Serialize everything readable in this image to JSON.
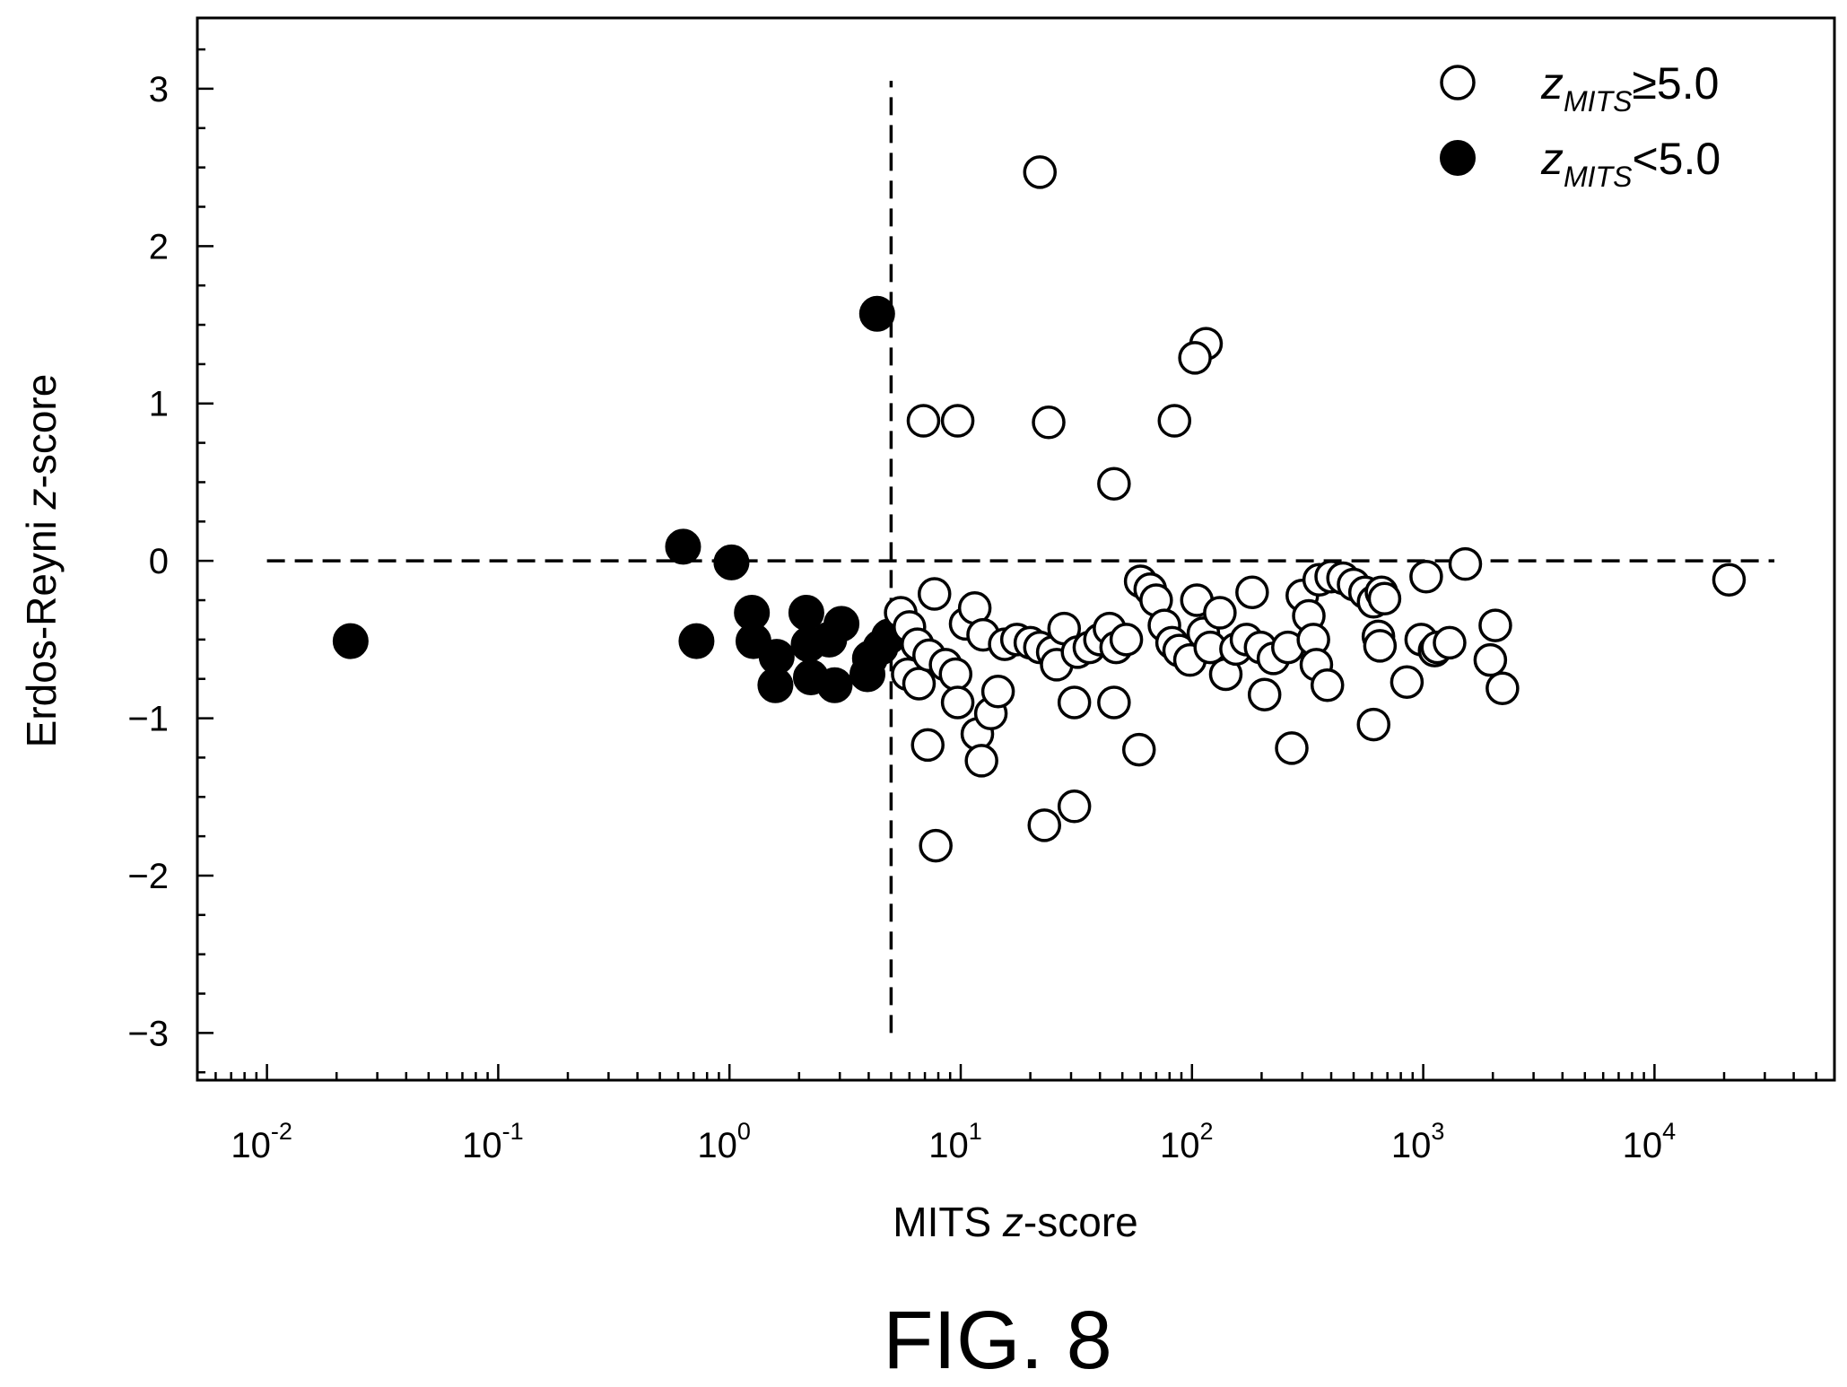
{
  "chart_data": {
    "type": "scatter",
    "xscale": "log",
    "xlim": [
      0.005,
      60000
    ],
    "ylim": [
      -3.3,
      3.45
    ],
    "xlabel_plain": "MITS ",
    "xlabel_italic": "z",
    "xlabel_rest": "-score",
    "ylabel_plain": "Erdos-Reyni ",
    "ylabel_italic": "z",
    "ylabel_rest": "-score",
    "x_major_ticks": [
      {
        "value": 0.01,
        "base": "10",
        "exp": "-2"
      },
      {
        "value": 0.1,
        "base": "10",
        "exp": "-1"
      },
      {
        "value": 1,
        "base": "10",
        "exp": "0"
      },
      {
        "value": 10,
        "base": "10",
        "exp": "1"
      },
      {
        "value": 100,
        "base": "10",
        "exp": "2"
      },
      {
        "value": 1000,
        "base": "10",
        "exp": "3"
      },
      {
        "value": 10000,
        "base": "10",
        "exp": "4"
      }
    ],
    "y_ticks": [
      {
        "value": 3,
        "label": "3"
      },
      {
        "value": 2,
        "label": "2"
      },
      {
        "value": 1,
        "label": "1"
      },
      {
        "value": 0,
        "label": "0"
      },
      {
        "value": -1,
        "label": "−1"
      },
      {
        "value": -2,
        "label": "−2"
      },
      {
        "value": -3,
        "label": "−3"
      }
    ],
    "reference_lines": [
      {
        "orientation": "vertical",
        "x": 5.0,
        "y_from": -3,
        "y_to": 3.05
      },
      {
        "orientation": "horizontal",
        "y": 0,
        "x_from": 0.01,
        "x_to": 33000
      }
    ],
    "legend": {
      "placement": "top-right",
      "entries": [
        {
          "symbol": "open",
          "var": "z",
          "sub": "MITS",
          "relation": "≥",
          "threshold": "5.0"
        },
        {
          "symbol": "filled",
          "var": "z",
          "sub": "MITS",
          "relation": "<",
          "threshold": "5.0"
        }
      ]
    },
    "series": [
      {
        "symbol": "filled",
        "points": [
          [
            0.023,
            -0.51
          ],
          [
            0.63,
            0.09
          ],
          [
            0.72,
            -0.51
          ],
          [
            1.02,
            -0.01
          ],
          [
            1.25,
            -0.33
          ],
          [
            1.27,
            -0.51
          ],
          [
            1.6,
            -0.61
          ],
          [
            1.58,
            -0.79
          ],
          [
            2.15,
            -0.33
          ],
          [
            2.2,
            -0.53
          ],
          [
            2.25,
            -0.74
          ],
          [
            2.7,
            -0.5
          ],
          [
            2.85,
            -0.79
          ],
          [
            3.05,
            -0.4
          ],
          [
            3.95,
            -0.72
          ],
          [
            4.05,
            -0.62
          ],
          [
            4.5,
            -0.55
          ],
          [
            4.9,
            -0.48
          ],
          [
            4.35,
            1.57
          ]
        ]
      },
      {
        "symbol": "open",
        "points": [
          [
            22,
            2.47
          ],
          [
            115,
            1.38
          ],
          [
            103,
            1.29
          ],
          [
            6.9,
            0.89
          ],
          [
            9.7,
            0.89
          ],
          [
            24,
            0.88
          ],
          [
            84,
            0.89
          ],
          [
            46,
            0.49
          ],
          [
            5.5,
            -0.33
          ],
          [
            6.0,
            -0.42
          ],
          [
            6.5,
            -0.53
          ],
          [
            5.9,
            -0.72
          ],
          [
            6.6,
            -0.78
          ],
          [
            7.7,
            -0.21
          ],
          [
            7.3,
            -0.6
          ],
          [
            8.6,
            -0.66
          ],
          [
            9.5,
            -0.72
          ],
          [
            9.7,
            -0.9
          ],
          [
            10.5,
            -0.4
          ],
          [
            11.5,
            -0.3
          ],
          [
            12.5,
            -0.47
          ],
          [
            11.8,
            -1.1
          ],
          [
            12.3,
            -1.27
          ],
          [
            13.5,
            -0.97
          ],
          [
            14.5,
            -0.83
          ],
          [
            15.5,
            -0.53
          ],
          [
            17.5,
            -0.5
          ],
          [
            20,
            -0.52
          ],
          [
            22,
            -0.55
          ],
          [
            25,
            -0.58
          ],
          [
            28,
            -0.43
          ],
          [
            26,
            -0.66
          ],
          [
            31,
            -0.9
          ],
          [
            32,
            -0.58
          ],
          [
            36,
            -0.55
          ],
          [
            40,
            -0.5
          ],
          [
            44,
            -0.43
          ],
          [
            47,
            -0.55
          ],
          [
            46,
            -0.9
          ],
          [
            52,
            -0.5
          ],
          [
            60,
            -0.13
          ],
          [
            66,
            -0.18
          ],
          [
            70,
            -0.25
          ],
          [
            76,
            -0.41
          ],
          [
            82,
            -0.52
          ],
          [
            88,
            -0.57
          ],
          [
            98,
            -0.63
          ],
          [
            105,
            -0.25
          ],
          [
            112,
            -0.46
          ],
          [
            120,
            -0.55
          ],
          [
            132,
            -0.33
          ],
          [
            140,
            -0.72
          ],
          [
            155,
            -0.56
          ],
          [
            172,
            -0.5
          ],
          [
            182,
            -0.2
          ],
          [
            198,
            -0.55
          ],
          [
            206,
            -0.85
          ],
          [
            225,
            -0.62
          ],
          [
            260,
            -0.55
          ],
          [
            300,
            -0.22
          ],
          [
            320,
            -0.35
          ],
          [
            335,
            -0.5
          ],
          [
            345,
            -0.66
          ],
          [
            355,
            -0.12
          ],
          [
            385,
            -0.79
          ],
          [
            400,
            -0.1
          ],
          [
            450,
            -0.11
          ],
          [
            500,
            -0.15
          ],
          [
            560,
            -0.2
          ],
          [
            610,
            -0.26
          ],
          [
            640,
            -0.48
          ],
          [
            650,
            -0.54
          ],
          [
            660,
            -0.2
          ],
          [
            680,
            -0.24
          ],
          [
            850,
            -0.77
          ],
          [
            980,
            -0.5
          ],
          [
            1030,
            -0.1
          ],
          [
            1120,
            -0.57
          ],
          [
            1150,
            -0.55
          ],
          [
            1300,
            -0.52
          ],
          [
            1520,
            -0.02
          ],
          [
            1950,
            -0.63
          ],
          [
            2050,
            -0.41
          ],
          [
            2200,
            -0.81
          ],
          [
            21000,
            -0.12
          ],
          [
            7.2,
            -1.17
          ],
          [
            7.8,
            -1.81
          ],
          [
            23,
            -1.68
          ],
          [
            31,
            -1.56
          ],
          [
            59,
            -1.2
          ],
          [
            270,
            -1.19
          ],
          [
            610,
            -1.04
          ]
        ]
      }
    ]
  },
  "caption": "FIG. 8"
}
